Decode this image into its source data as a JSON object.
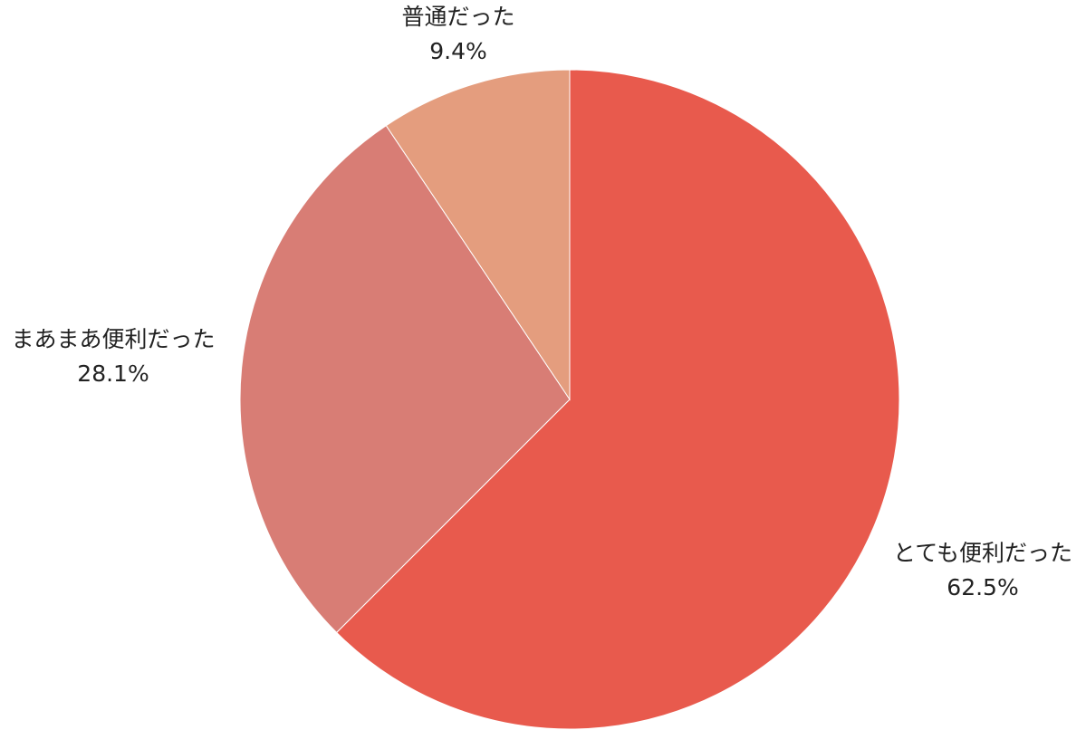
{
  "chart_data": {
    "type": "pie",
    "start_angle": "12 o'clock",
    "direction": "clockwise",
    "slices": [
      {
        "label": "とても便利だった",
        "value": 62.5,
        "value_label": "62.5%",
        "color": "#E85A4D"
      },
      {
        "label": "まあまあ便利だった",
        "value": 28.1,
        "value_label": "28.1%",
        "color": "#D87D75"
      },
      {
        "label": "普通だった",
        "value": 9.4,
        "value_label": "9.4%",
        "color": "#E49D7E"
      }
    ]
  }
}
